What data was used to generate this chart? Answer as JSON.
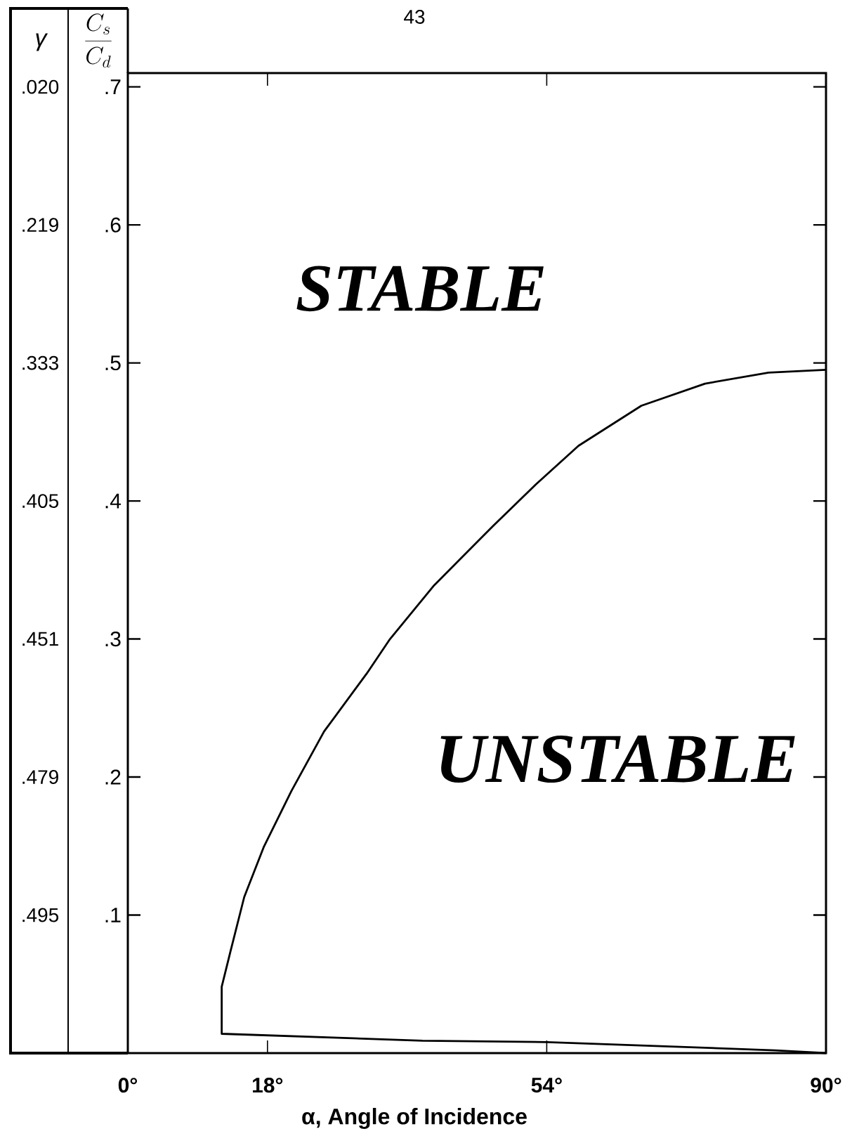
{
  "chart_data": {
    "type": "line",
    "xlabel": "α, Angle of Incidence",
    "ylabel": "\\frac{C_s}{C_d}",
    "annotations": [
      "43",
      "STABLE",
      "UNSTABLE",
      "γ",
      ".020",
      ".219",
      ".333",
      ".405",
      ".451",
      ".479",
      ".495"
    ],
    "xlim": [
      0,
      90
    ],
    "xticks": [
      {
        "value": 0,
        "label": "0°"
      },
      {
        "value": 18,
        "label": "18°"
      },
      {
        "value": 54,
        "label": "54°"
      },
      {
        "value": 90,
        "label": "90°"
      }
    ],
    "ylim": [
      0,
      0.71
    ],
    "yticks": [
      {
        "value": 0.1,
        "label": ".1"
      },
      {
        "value": 0.2,
        "label": ".2"
      },
      {
        "value": 0.3,
        "label": ".3"
      },
      {
        "value": 0.4,
        "label": ".4"
      },
      {
        "value": 0.5,
        "label": ".5"
      },
      {
        "value": 0.6,
        "label": ".6"
      },
      {
        "value": 0.7,
        "label": ".7"
      }
    ],
    "marker": "none",
    "line_style": "solid",
    "series": [
      {
        "color": "#000000",
        "x": [
          90,
          83.5,
          54,
          38,
          12.1,
          12.1,
          13.2,
          15.0,
          17.5,
          21.1,
          25.3,
          30.8,
          33.8,
          39.5,
          47.1,
          52.6,
          58.1,
          66.2,
          74.4,
          82.6,
          90
        ],
        "values": [
          0.0,
          0.002,
          0.008,
          0.009,
          0.014,
          0.048,
          0.073,
          0.113,
          0.149,
          0.19,
          0.233,
          0.275,
          0.3,
          0.339,
          0.382,
          0.412,
          0.44,
          0.469,
          0.485,
          0.493,
          0.495
        ]
      }
    ]
  }
}
